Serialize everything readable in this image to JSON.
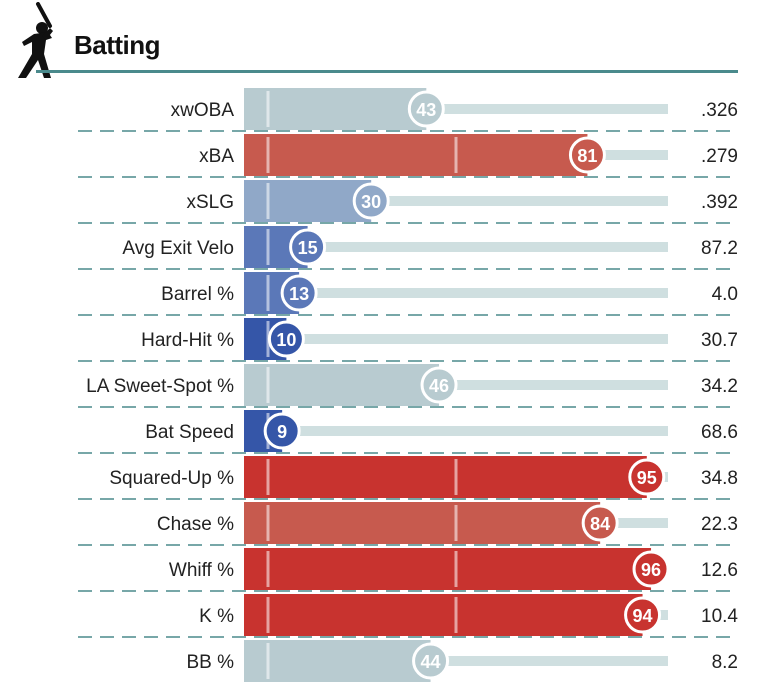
{
  "header": {
    "title": "Batting",
    "icon": "batter-silhouette-icon",
    "rule_color": "#4a8a8c"
  },
  "chart_data": {
    "type": "bar",
    "orientation": "horizontal",
    "title": "Batting",
    "value_range": [
      0,
      100
    ],
    "gridlines_at": [
      50
    ],
    "rows": [
      {
        "label": "xwOBA",
        "percentile": 43,
        "value": ".326"
      },
      {
        "label": "xBA",
        "percentile": 81,
        "value": ".279"
      },
      {
        "label": "xSLG",
        "percentile": 30,
        "value": ".392"
      },
      {
        "label": "Avg Exit Velo",
        "percentile": 15,
        "value": "87.2"
      },
      {
        "label": "Barrel %",
        "percentile": 13,
        "value": "4.0"
      },
      {
        "label": "Hard-Hit %",
        "percentile": 10,
        "value": "30.7"
      },
      {
        "label": "LA Sweet-Spot %",
        "percentile": 46,
        "value": "34.2"
      },
      {
        "label": "Bat Speed",
        "percentile": 9,
        "value": "68.6"
      },
      {
        "label": "Squared-Up %",
        "percentile": 95,
        "value": "34.8"
      },
      {
        "label": "Chase %",
        "percentile": 84,
        "value": "22.3"
      },
      {
        "label": "Whiff %",
        "percentile": 96,
        "value": "12.6"
      },
      {
        "label": "K %",
        "percentile": 94,
        "value": "10.4"
      },
      {
        "label": "BB %",
        "percentile": 44,
        "value": "8.2"
      }
    ],
    "colors": {
      "track": "#cfdfe0",
      "separator": "#4a8a8c",
      "midline": "#ffffff",
      "text": "#222222",
      "scale": [
        "#3556a8",
        "#5b78b8",
        "#90a8c8",
        "#b8cbd0",
        "#d88f84",
        "#c75a4e",
        "#c8332f"
      ]
    }
  }
}
